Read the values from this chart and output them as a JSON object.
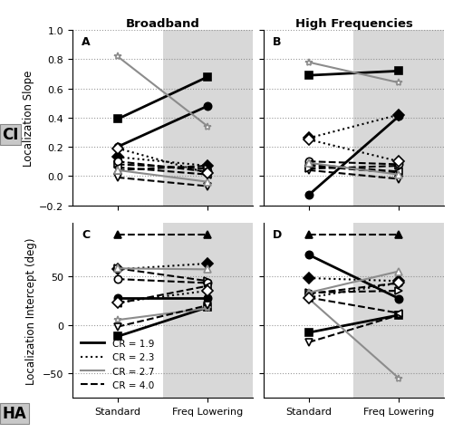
{
  "title_left": "Broadband",
  "title_right": "High Frequencies",
  "ylabel_top": "Localization Slope",
  "ylabel_bottom": "Localization Intercept (deg)",
  "xlabel": [
    "Standard",
    "Freq Lowering"
  ],
  "slope_ylim": [
    -0.2,
    1.0
  ],
  "intercept_ylim": [
    -75,
    105
  ],
  "slope_yticks": [
    -0.2,
    0.0,
    0.2,
    0.4,
    0.6,
    0.8,
    1.0
  ],
  "intercept_yticks": [
    -50,
    0,
    50
  ],
  "shaded_color": "#d8d8d8",
  "subjects": [
    {
      "id": 1,
      "marker": "s",
      "CR": 1.9,
      "filled": true,
      "slope_A": [
        0.39,
        0.68
      ],
      "slope_B": [
        0.69,
        0.72
      ],
      "intercept_C": [
        -12,
        18
      ],
      "intercept_D": [
        -8,
        10
      ]
    },
    {
      "id": 2,
      "marker": "o",
      "CR": 1.9,
      "filled": true,
      "slope_A": [
        0.2,
        0.48
      ],
      "slope_B": [
        -0.13,
        0.41
      ],
      "intercept_C": [
        28,
        28
      ],
      "intercept_D": [
        72,
        27
      ]
    },
    {
      "id": 3,
      "marker": "*",
      "CR": 2.7,
      "filled": false,
      "slope_A": [
        0.82,
        0.34
      ],
      "slope_B": [
        0.78,
        0.64
      ],
      "intercept_C": [
        5,
        17
      ],
      "intercept_D": [
        27,
        -55
      ]
    },
    {
      "id": 4,
      "marker": "D",
      "CR": 2.3,
      "filled": true,
      "slope_A": [
        0.13,
        0.07
      ],
      "slope_B": [
        0.26,
        0.42
      ],
      "intercept_C": [
        57,
        63
      ],
      "intercept_D": [
        48,
        45
      ]
    },
    {
      "id": 5,
      "marker": "^",
      "CR": 4.0,
      "filled": true,
      "slope_A": [
        0.04,
        0.07
      ],
      "slope_B": [
        0.07,
        0.02
      ],
      "intercept_C": [
        93,
        93
      ],
      "intercept_D": [
        93,
        93
      ]
    },
    {
      "id": 6,
      "marker": "v",
      "CR": 4.0,
      "filled": false,
      "slope_A": [
        -0.01,
        -0.07
      ],
      "slope_B": [
        0.04,
        -0.02
      ],
      "intercept_C": [
        -2,
        20
      ],
      "intercept_D": [
        -18,
        10
      ]
    },
    {
      "id": 7,
      "marker": ">",
      "CR": 4.0,
      "filled": false,
      "slope_A": [
        0.08,
        0.05
      ],
      "slope_B": [
        0.05,
        0.07
      ],
      "intercept_C": [
        58,
        45
      ],
      "intercept_D": [
        33,
        35
      ]
    },
    {
      "id": 8,
      "marker": "o",
      "CR": 4.0,
      "filled": false,
      "slope_A": [
        0.1,
        0.03
      ],
      "slope_B": [
        0.1,
        0.08
      ],
      "intercept_C": [
        47,
        43
      ],
      "intercept_D": [
        32,
        43
      ]
    },
    {
      "id": 9,
      "marker": "<",
      "CR": 4.0,
      "filled": false,
      "slope_A": [
        0.06,
        0.01
      ],
      "slope_B": [
        0.08,
        0.03
      ],
      "intercept_C": [
        22,
        40
      ],
      "intercept_D": [
        28,
        12
      ]
    },
    {
      "id": 10,
      "marker": "^",
      "CR": 2.7,
      "filled": false,
      "slope_A": [
        0.04,
        -0.04
      ],
      "slope_B": [
        0.09,
        0.01
      ],
      "intercept_C": [
        58,
        57
      ],
      "intercept_D": [
        33,
        55
      ]
    },
    {
      "id": 11,
      "marker": "D",
      "CR": 2.3,
      "filled": false,
      "slope_A": [
        0.19,
        0.02
      ],
      "slope_B": [
        0.25,
        0.1
      ],
      "intercept_C": [
        23,
        35
      ],
      "intercept_D": [
        28,
        43
      ]
    }
  ]
}
